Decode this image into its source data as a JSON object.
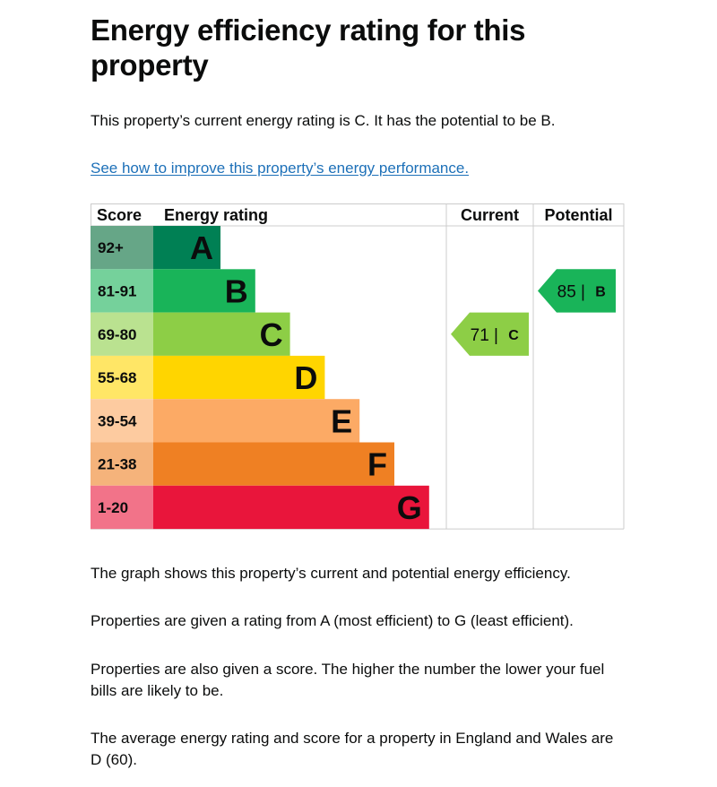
{
  "page": {
    "title": "Energy efficiency rating for this property",
    "intro": "This property’s current energy rating is C. It has the potential to be B.",
    "improve_link": "See how to improve this property’s energy performance.",
    "paragraphs": [
      "The graph shows this property’s current and potential energy efficiency.",
      "Properties are given a rating from A (most efficient) to G (least efficient).",
      "Properties are also given a score. The higher the number the lower your fuel bills are likely to be.",
      "The average energy rating and score for a property in England and Wales are D (60)."
    ]
  },
  "chart_data": {
    "type": "bar",
    "headers": {
      "score": "Score",
      "rating": "Energy rating",
      "current": "Current",
      "potential": "Potential"
    },
    "bands": [
      {
        "letter": "A",
        "range": "92+",
        "color": "#008054",
        "score_bg": "#66a687"
      },
      {
        "letter": "B",
        "range": "81-91",
        "color": "#19b459",
        "score_bg": "#75d19b"
      },
      {
        "letter": "C",
        "range": "69-80",
        "color": "#8dce46",
        "score_bg": "#bae290"
      },
      {
        "letter": "D",
        "range": "55-68",
        "color": "#ffd500",
        "score_bg": "#ffe666"
      },
      {
        "letter": "E",
        "range": "39-54",
        "color": "#fcaa65",
        "score_bg": "#fdcba0"
      },
      {
        "letter": "F",
        "range": "21-38",
        "color": "#ef8023",
        "score_bg": "#f5b37b"
      },
      {
        "letter": "G",
        "range": "1-20",
        "color": "#e9153b",
        "score_bg": "#f27389"
      }
    ],
    "current": {
      "score": 71,
      "letter": "C",
      "label": "71 |",
      "color": "#8dce46"
    },
    "potential": {
      "score": 85,
      "letter": "B",
      "label": "85 |",
      "color": "#19b459"
    }
  }
}
